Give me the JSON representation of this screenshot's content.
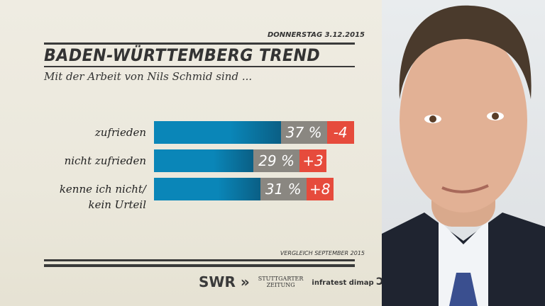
{
  "header": {
    "date": "DONNERSTAG  3.12.2015",
    "title": "BADEN-WÜRTTEMBERG TREND",
    "subtitle": "Mit der Arbeit von Nils Schmid sind ..."
  },
  "chart_data": {
    "type": "bar",
    "orientation": "horizontal",
    "categories": [
      "zufrieden",
      "nicht zufrieden",
      "kenne ich nicht/\nkein Urteil"
    ],
    "category_lines": [
      [
        "zufrieden"
      ],
      [
        "nicht zufrieden"
      ],
      [
        "kenne ich nicht/",
        "kein Urteil"
      ]
    ],
    "values": [
      37,
      29,
      31
    ],
    "value_labels": [
      "37 %",
      "29 %",
      "31 %"
    ],
    "changes": [
      -4,
      3,
      8
    ],
    "change_labels": [
      "-4",
      "+3",
      "+8"
    ],
    "colors": {
      "bar": "#0a86b8",
      "value_box": "#8a8781",
      "change_box": "#e64b3c"
    }
  },
  "footer": {
    "comparison_note": "VERGLEICH SEPTEMBER 2015",
    "logos": {
      "swr": "SWR",
      "stuttgarter_line1": "STUTTGARTER",
      "stuttgarter_line2": "ZEITUNG",
      "infratest": "infratest dimap"
    }
  }
}
